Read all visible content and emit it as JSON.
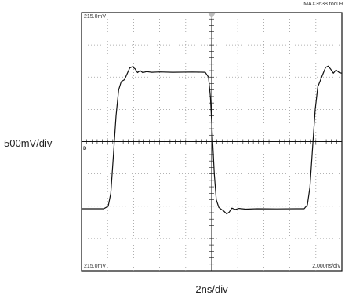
{
  "chart_data": {
    "type": "line",
    "title": "",
    "figure_label": "MAX3638 toc09",
    "xlabel": "2ns/div",
    "ylabel": "500mV/div",
    "readout_top_left": "215.0mV",
    "readout_bottom_left": "215.0mV",
    "readout_bottom_right": "2.000ns/div",
    "ground_marker": "ᴆ",
    "grid": true,
    "xlim": [
      -10,
      10
    ],
    "ylim": [
      -2000,
      2000
    ],
    "units": {
      "x": "ns",
      "y": "mV"
    },
    "series": [
      {
        "points": [
          [
            -10.0,
            -1040
          ],
          [
            -8.3,
            -1040
          ],
          [
            -7.95,
            -1000
          ],
          [
            -7.75,
            -800
          ],
          [
            -7.55,
            -200
          ],
          [
            -7.35,
            400
          ],
          [
            -7.15,
            800
          ],
          [
            -6.95,
            930
          ],
          [
            -6.7,
            960
          ],
          [
            -6.5,
            1050
          ],
          [
            -6.3,
            1140
          ],
          [
            -6.1,
            1160
          ],
          [
            -5.9,
            1130
          ],
          [
            -5.7,
            1070
          ],
          [
            -5.5,
            1100
          ],
          [
            -5.3,
            1070
          ],
          [
            -5.0,
            1085
          ],
          [
            -4.6,
            1075
          ],
          [
            -4.0,
            1080
          ],
          [
            -3.0,
            1075
          ],
          [
            -1.5,
            1078
          ],
          [
            -0.5,
            1075
          ],
          [
            -0.25,
            1000
          ],
          [
            -0.1,
            700
          ],
          [
            0.05,
            100
          ],
          [
            0.2,
            -500
          ],
          [
            0.35,
            -900
          ],
          [
            0.55,
            -1020
          ],
          [
            0.75,
            -1050
          ],
          [
            0.95,
            -1080
          ],
          [
            1.15,
            -1120
          ],
          [
            1.35,
            -1090
          ],
          [
            1.55,
            -1030
          ],
          [
            1.8,
            -1050
          ],
          [
            2.1,
            -1035
          ],
          [
            2.6,
            -1045
          ],
          [
            3.5,
            -1040
          ],
          [
            5.0,
            -1042
          ],
          [
            6.5,
            -1040
          ],
          [
            7.1,
            -1040
          ],
          [
            7.35,
            -980
          ],
          [
            7.55,
            -700
          ],
          [
            7.75,
            -100
          ],
          [
            7.95,
            500
          ],
          [
            8.15,
            850
          ],
          [
            8.35,
            950
          ],
          [
            8.55,
            1050
          ],
          [
            8.75,
            1150
          ],
          [
            8.95,
            1170
          ],
          [
            9.15,
            1120
          ],
          [
            9.35,
            1060
          ],
          [
            9.55,
            1110
          ],
          [
            9.8,
            1070
          ],
          [
            10.0,
            1060
          ]
        ]
      }
    ]
  }
}
